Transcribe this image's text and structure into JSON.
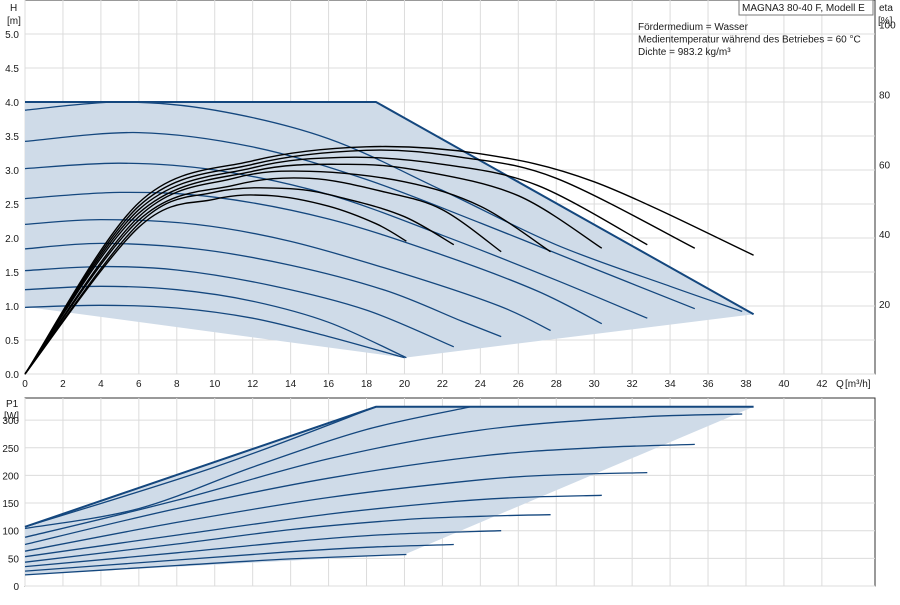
{
  "chart_data": [
    {
      "type": "line",
      "panel": "head-and-efficiency",
      "title": "MAGNA3 80-40 F, Modell E",
      "annotations": [
        "Fördermedium = Wasser",
        "Medientemperatur während des Betriebes = 60 °C",
        "Dichte = 983.2 kg/m³"
      ],
      "ylabel": "H",
      "ylabel_unit": "[m]",
      "y2label": "eta",
      "y2label_unit": "[%]",
      "xlabel": "Q",
      "xlabel_unit": "[m³/h]",
      "xlim": [
        0,
        44.8
      ],
      "ylim": [
        0,
        5.5
      ],
      "y2lim": [
        0,
        107
      ],
      "xticks": [
        0,
        2,
        4,
        6,
        8,
        10,
        12,
        14,
        16,
        18,
        20,
        22,
        24,
        26,
        28,
        30,
        32,
        34,
        36,
        38,
        40,
        42
      ],
      "yticks": [
        0.0,
        0.5,
        1.0,
        1.5,
        2.0,
        2.5,
        3.0,
        3.5,
        4.0,
        4.5,
        5.0
      ],
      "y2ticks": [
        20,
        40,
        60,
        80,
        100
      ],
      "grid": true,
      "fill_color": "#cfdbe8",
      "line_color": "#14477e",
      "eff_color": "#000000",
      "envelope": [
        [
          0,
          4.0
        ],
        [
          9.5,
          4.0
        ],
        [
          18.5,
          4.0
        ],
        [
          38.4,
          0.88
        ],
        [
          20.0,
          0.24
        ],
        [
          0,
          0.99
        ]
      ],
      "series": [
        {
          "values": [
            [
              0,
              3.88
            ],
            [
              5,
              4.0
            ],
            [
              10,
              3.88
            ],
            [
              16,
              3.46
            ],
            [
              22,
              2.7
            ],
            [
              28,
              1.9
            ],
            [
              34,
              1.29
            ],
            [
              37.8,
              0.92
            ]
          ]
        },
        {
          "values": [
            [
              0,
              3.42
            ],
            [
              6,
              3.55
            ],
            [
              12,
              3.34
            ],
            [
              18,
              2.86
            ],
            [
              24,
              2.22
            ],
            [
              30,
              1.55
            ],
            [
              35.3,
              0.96
            ]
          ]
        },
        {
          "values": [
            [
              0,
              3.02
            ],
            [
              5,
              3.1
            ],
            [
              10,
              3.0
            ],
            [
              16,
              2.64
            ],
            [
              22,
              2.04
            ],
            [
              28,
              1.38
            ],
            [
              32.8,
              0.82
            ]
          ]
        },
        {
          "values": [
            [
              0,
              2.58
            ],
            [
              5,
              2.67
            ],
            [
              10,
              2.6
            ],
            [
              16,
              2.28
            ],
            [
              22,
              1.75
            ],
            [
              27,
              1.22
            ],
            [
              30.4,
              0.74
            ]
          ]
        },
        {
          "values": [
            [
              0,
              2.2
            ],
            [
              4,
              2.27
            ],
            [
              9,
              2.2
            ],
            [
              14,
              1.95
            ],
            [
              20,
              1.47
            ],
            [
              25,
              1.0
            ],
            [
              27.7,
              0.64
            ]
          ]
        },
        {
          "values": [
            [
              0,
              1.84
            ],
            [
              4,
              1.92
            ],
            [
              9,
              1.84
            ],
            [
              14,
              1.6
            ],
            [
              19,
              1.23
            ],
            [
              23,
              0.78
            ],
            [
              25.1,
              0.55
            ]
          ]
        },
        {
          "values": [
            [
              0,
              1.52
            ],
            [
              4,
              1.58
            ],
            [
              8,
              1.53
            ],
            [
              13,
              1.3
            ],
            [
              18,
              0.94
            ],
            [
              22.6,
              0.4
            ]
          ]
        },
        {
          "values": [
            [
              0,
              1.24
            ],
            [
              4,
              1.29
            ],
            [
              8,
              1.24
            ],
            [
              12,
              1.07
            ],
            [
              16,
              0.76
            ],
            [
              20.1,
              0.24
            ]
          ]
        },
        {
          "values": [
            [
              0,
              0.98
            ],
            [
              4,
              1.01
            ],
            [
              8,
              0.97
            ],
            [
              12,
              0.82
            ],
            [
              16,
              0.55
            ],
            [
              20.0,
              0.24
            ]
          ]
        }
      ],
      "efficiency_series": [
        {
          "values": [
            [
              0,
              0
            ],
            [
              6,
              49
            ],
            [
              12,
              61
            ],
            [
              18,
              65
            ],
            [
              24,
              63
            ],
            [
              30,
              55
            ],
            [
              38.4,
              34
            ]
          ]
        },
        {
          "values": [
            [
              0,
              0
            ],
            [
              6,
              48
            ],
            [
              12,
              60
            ],
            [
              18,
              64
            ],
            [
              23,
              62
            ],
            [
              28,
              56
            ],
            [
              35.3,
              36
            ]
          ]
        },
        {
          "values": [
            [
              0,
              0
            ],
            [
              6,
              47
            ],
            [
              12,
              59
            ],
            [
              17,
              62
            ],
            [
              22,
              60
            ],
            [
              27,
              54
            ],
            [
              32.8,
              37
            ]
          ]
        },
        {
          "values": [
            [
              0,
              0
            ],
            [
              6,
              46
            ],
            [
              12,
              58
            ],
            [
              17,
              60
            ],
            [
              21,
              58
            ],
            [
              26,
              51
            ],
            [
              30.4,
              36
            ]
          ]
        },
        {
          "values": [
            [
              0,
              0
            ],
            [
              6,
              45
            ],
            [
              11,
              56
            ],
            [
              15,
              58
            ],
            [
              20,
              55
            ],
            [
              24,
              48
            ],
            [
              27.7,
              35
            ]
          ]
        },
        {
          "values": [
            [
              0,
              0
            ],
            [
              6,
              44
            ],
            [
              11,
              54
            ],
            [
              15,
              56
            ],
            [
              19,
              52
            ],
            [
              22,
              47
            ],
            [
              25.1,
              35
            ]
          ]
        },
        {
          "values": [
            [
              0,
              0
            ],
            [
              6,
              43
            ],
            [
              10,
              52
            ],
            [
              14,
              53
            ],
            [
              17,
              50
            ],
            [
              20,
              45
            ],
            [
              22.6,
              37
            ]
          ]
        },
        {
          "values": [
            [
              0,
              0
            ],
            [
              6,
              42
            ],
            [
              10,
              50
            ],
            [
              13,
              51
            ],
            [
              16,
              48
            ],
            [
              18.5,
              43
            ],
            [
              20.1,
              38
            ]
          ]
        }
      ]
    },
    {
      "type": "line",
      "panel": "power-input",
      "ylabel": "P1",
      "ylabel_unit": "[W]",
      "xlim": [
        0,
        44.8
      ],
      "ylim": [
        0,
        340
      ],
      "yticks": [
        0,
        50,
        100,
        150,
        200,
        250,
        300
      ],
      "grid": true,
      "envelope": [
        [
          0,
          107
        ],
        [
          18.5,
          324
        ],
        [
          38.4,
          324
        ],
        [
          20.0,
          57
        ],
        [
          0,
          20
        ]
      ],
      "series": [
        {
          "values": [
            [
              0,
              107
            ],
            [
              10,
              215
            ],
            [
              18.5,
              324
            ]
          ]
        },
        {
          "values": [
            [
              0,
              104
            ],
            [
              6,
              140
            ],
            [
              12,
              215
            ],
            [
              18,
              283
            ],
            [
              23.5,
              324
            ]
          ]
        },
        {
          "values": [
            [
              0,
              88
            ],
            [
              8,
              155
            ],
            [
              16,
              230
            ],
            [
              24,
              282
            ],
            [
              32,
              305
            ],
            [
              37.8,
              311
            ]
          ]
        },
        {
          "values": [
            [
              0,
              75
            ],
            [
              8,
              140
            ],
            [
              16,
              195
            ],
            [
              24,
              235
            ],
            [
              30,
              250
            ],
            [
              35.3,
              256
            ]
          ]
        },
        {
          "values": [
            [
              0,
              63
            ],
            [
              8,
              115
            ],
            [
              16,
              160
            ],
            [
              24,
              192
            ],
            [
              28,
              201
            ],
            [
              32.8,
              205
            ]
          ]
        },
        {
          "values": [
            [
              0,
              53
            ],
            [
              8,
              92
            ],
            [
              16,
              130
            ],
            [
              22,
              151
            ],
            [
              26,
              160
            ],
            [
              30.4,
              164
            ]
          ]
        },
        {
          "values": [
            [
              0,
              43
            ],
            [
              8,
              76
            ],
            [
              14,
              102
            ],
            [
              20,
              120
            ],
            [
              24,
              126
            ],
            [
              27.7,
              129
            ]
          ]
        },
        {
          "values": [
            [
              0,
              35
            ],
            [
              8,
              60
            ],
            [
              14,
              80
            ],
            [
              19,
              93
            ],
            [
              25.1,
              100
            ]
          ]
        },
        {
          "values": [
            [
              0,
              27
            ],
            [
              8,
              47
            ],
            [
              14,
              62
            ],
            [
              18,
              70
            ],
            [
              22.6,
              75
            ]
          ]
        },
        {
          "values": [
            [
              0,
              20
            ],
            [
              8,
              37
            ],
            [
              14,
              49
            ],
            [
              20.1,
              57
            ]
          ]
        }
      ]
    }
  ]
}
